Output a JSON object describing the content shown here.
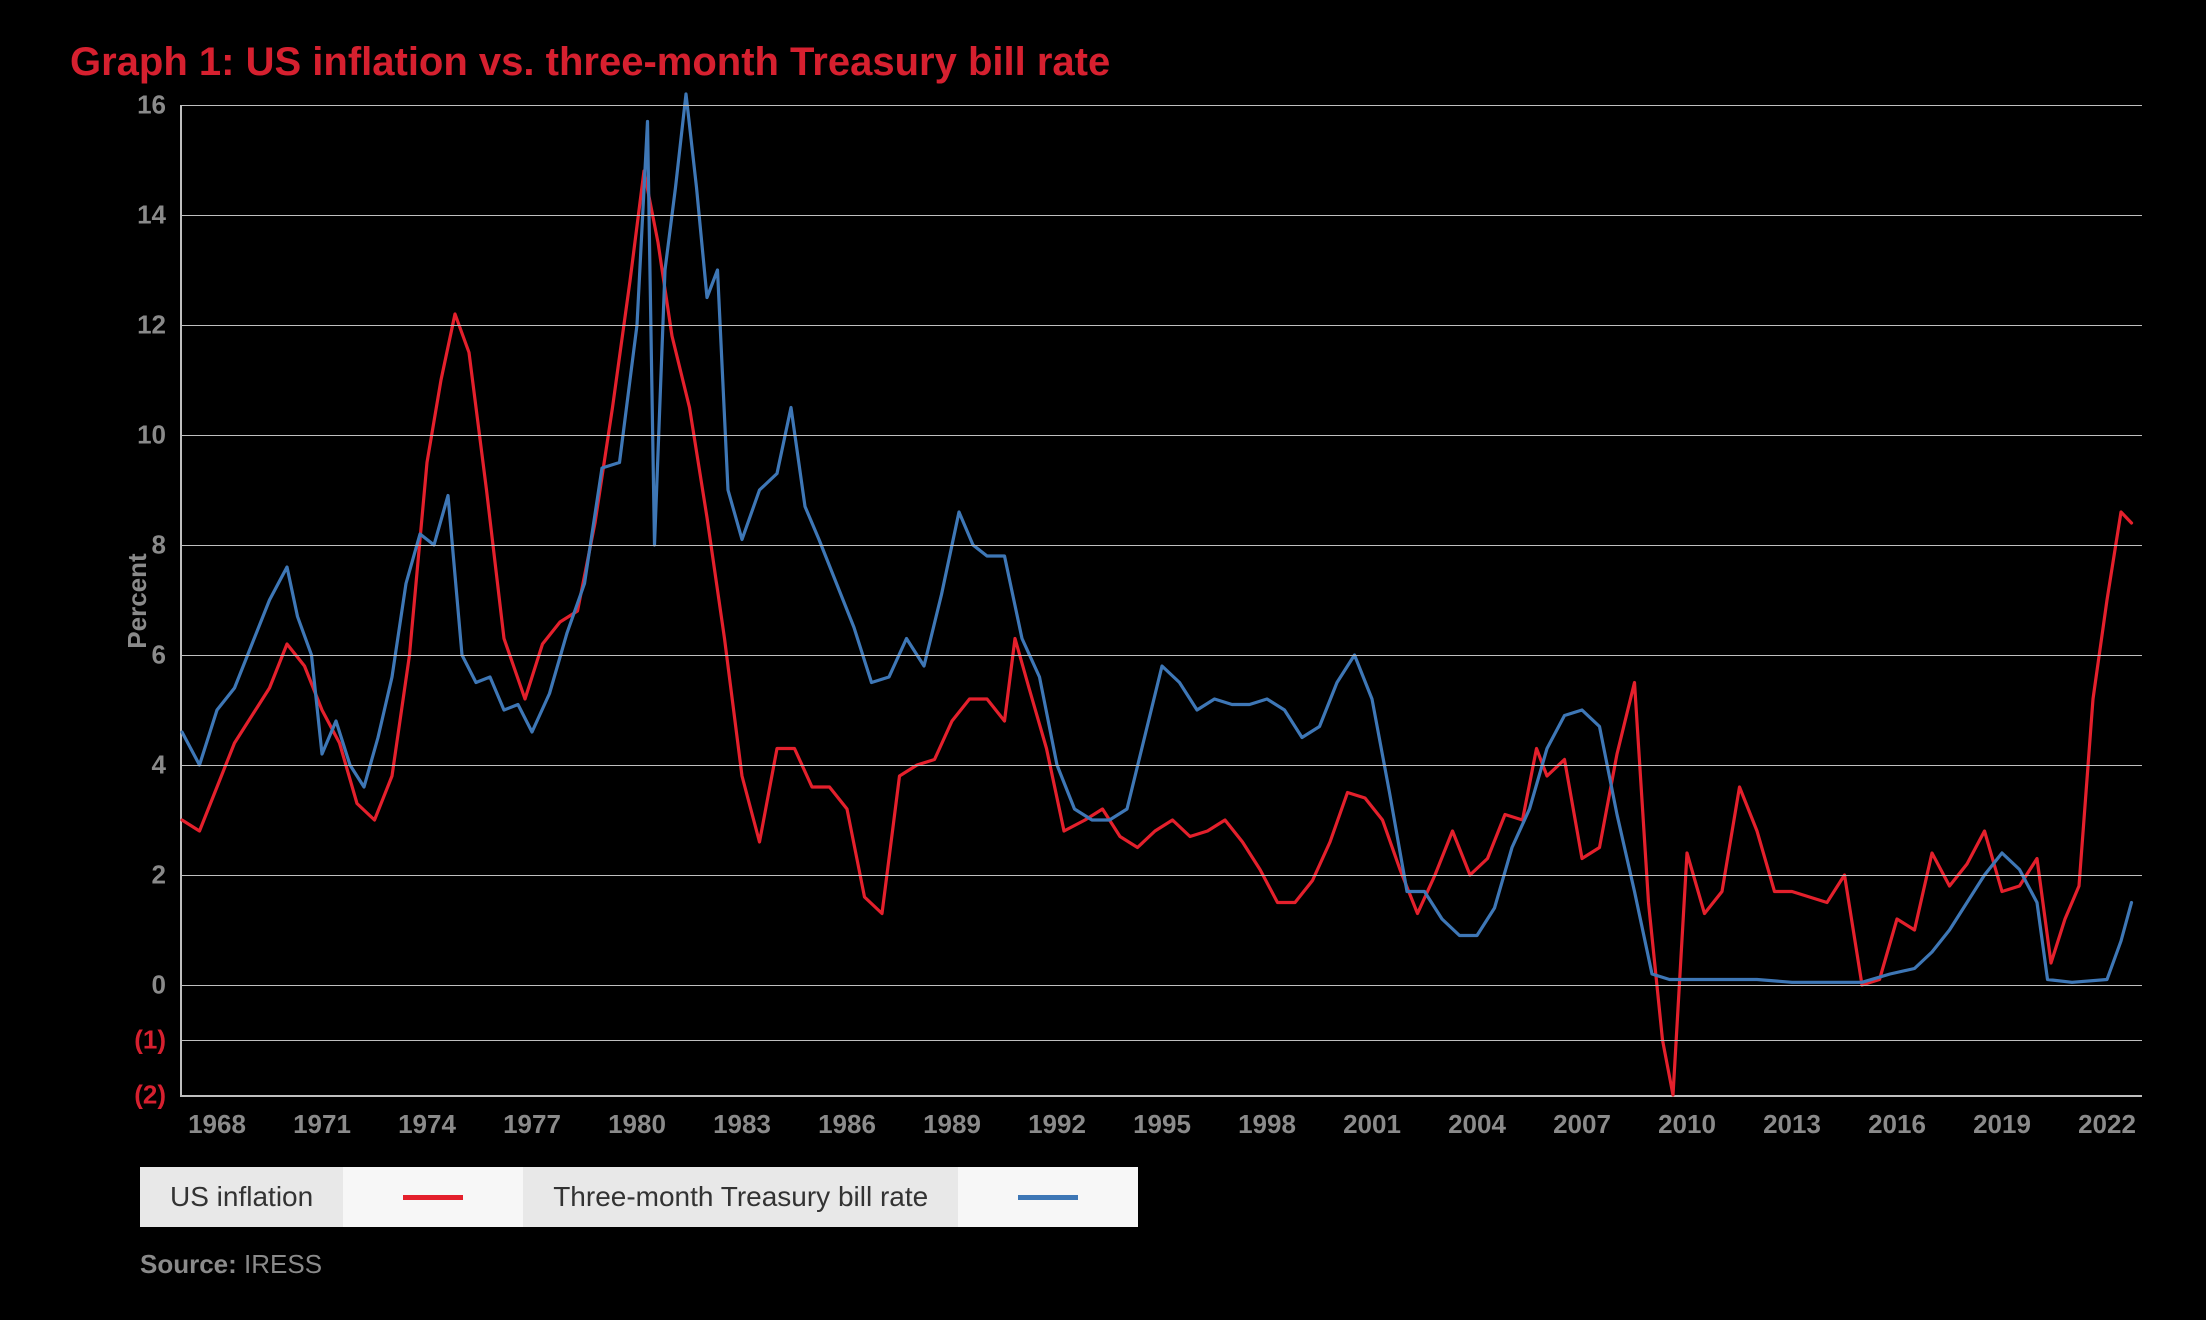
{
  "title": "Graph 1: US inflation vs. three-month Treasury bill rate",
  "y_axis_label": "Percent",
  "source_label": "Source:",
  "source_value": "IRESS",
  "legend": {
    "series1_label": "US inflation",
    "series2_label": "Three-month Treasury bill rate"
  },
  "chart": {
    "type": "line",
    "background_color": "#000000",
    "grid_color": "#bfbfbf",
    "axis_color": "#bfbfbf",
    "tick_label_color": "#8a8a8a",
    "tick_label_color_negative": "#d6202f",
    "title_color": "#d6202f",
    "title_fontsize": 40,
    "tick_fontsize": 26,
    "line_width": 3.2,
    "ylim": [
      -2,
      16
    ],
    "y_ticks": [
      -2,
      -1,
      0,
      2,
      4,
      6,
      8,
      10,
      12,
      14,
      16
    ],
    "y_tick_labels": [
      "(2)",
      "(1)",
      "0",
      "2",
      "4",
      "6",
      "8",
      "10",
      "12",
      "14",
      "16"
    ],
    "x_range": [
      1967,
      2023
    ],
    "x_ticks": [
      1968,
      1971,
      1974,
      1977,
      1980,
      1983,
      1986,
      1989,
      1992,
      1995,
      1998,
      2001,
      2004,
      2007,
      2010,
      2013,
      2016,
      2019,
      2022
    ],
    "series": [
      {
        "name": "US inflation",
        "color": "#e4202c",
        "data": [
          [
            1967.0,
            3.0
          ],
          [
            1967.5,
            2.8
          ],
          [
            1968.0,
            3.6
          ],
          [
            1968.5,
            4.4
          ],
          [
            1969.0,
            4.9
          ],
          [
            1969.5,
            5.4
          ],
          [
            1970.0,
            6.2
          ],
          [
            1970.5,
            5.8
          ],
          [
            1971.0,
            5.0
          ],
          [
            1971.5,
            4.4
          ],
          [
            1972.0,
            3.3
          ],
          [
            1972.5,
            3.0
          ],
          [
            1973.0,
            3.8
          ],
          [
            1973.5,
            6.0
          ],
          [
            1974.0,
            9.5
          ],
          [
            1974.4,
            11.0
          ],
          [
            1974.8,
            12.2
          ],
          [
            1975.2,
            11.5
          ],
          [
            1975.7,
            9.0
          ],
          [
            1976.2,
            6.3
          ],
          [
            1976.8,
            5.2
          ],
          [
            1977.3,
            6.2
          ],
          [
            1977.8,
            6.6
          ],
          [
            1978.3,
            6.8
          ],
          [
            1978.8,
            8.4
          ],
          [
            1979.3,
            10.5
          ],
          [
            1979.8,
            12.8
          ],
          [
            1980.2,
            14.8
          ],
          [
            1980.6,
            13.5
          ],
          [
            1981.0,
            11.8
          ],
          [
            1981.5,
            10.5
          ],
          [
            1982.0,
            8.5
          ],
          [
            1982.5,
            6.3
          ],
          [
            1983.0,
            3.8
          ],
          [
            1983.5,
            2.6
          ],
          [
            1984.0,
            4.3
          ],
          [
            1984.5,
            4.3
          ],
          [
            1985.0,
            3.6
          ],
          [
            1985.5,
            3.6
          ],
          [
            1986.0,
            3.2
          ],
          [
            1986.5,
            1.6
          ],
          [
            1987.0,
            1.3
          ],
          [
            1987.5,
            3.8
          ],
          [
            1988.0,
            4.0
          ],
          [
            1988.5,
            4.1
          ],
          [
            1989.0,
            4.8
          ],
          [
            1989.5,
            5.2
          ],
          [
            1990.0,
            5.2
          ],
          [
            1990.5,
            4.8
          ],
          [
            1990.8,
            6.3
          ],
          [
            1991.2,
            5.4
          ],
          [
            1991.7,
            4.3
          ],
          [
            1992.2,
            2.8
          ],
          [
            1992.8,
            3.0
          ],
          [
            1993.3,
            3.2
          ],
          [
            1993.8,
            2.7
          ],
          [
            1994.3,
            2.5
          ],
          [
            1994.8,
            2.8
          ],
          [
            1995.3,
            3.0
          ],
          [
            1995.8,
            2.7
          ],
          [
            1996.3,
            2.8
          ],
          [
            1996.8,
            3.0
          ],
          [
            1997.3,
            2.6
          ],
          [
            1997.8,
            2.1
          ],
          [
            1998.3,
            1.5
          ],
          [
            1998.8,
            1.5
          ],
          [
            1999.3,
            1.9
          ],
          [
            1999.8,
            2.6
          ],
          [
            2000.3,
            3.5
          ],
          [
            2000.8,
            3.4
          ],
          [
            2001.3,
            3.0
          ],
          [
            2001.8,
            2.1
          ],
          [
            2002.3,
            1.3
          ],
          [
            2002.8,
            2.0
          ],
          [
            2003.3,
            2.8
          ],
          [
            2003.8,
            2.0
          ],
          [
            2004.3,
            2.3
          ],
          [
            2004.8,
            3.1
          ],
          [
            2005.3,
            3.0
          ],
          [
            2005.7,
            4.3
          ],
          [
            2006.0,
            3.8
          ],
          [
            2006.5,
            4.1
          ],
          [
            2007.0,
            2.3
          ],
          [
            2007.5,
            2.5
          ],
          [
            2008.0,
            4.2
          ],
          [
            2008.5,
            5.5
          ],
          [
            2008.9,
            1.5
          ],
          [
            2009.3,
            -1.0
          ],
          [
            2009.6,
            -2.0
          ],
          [
            2010.0,
            2.4
          ],
          [
            2010.5,
            1.3
          ],
          [
            2011.0,
            1.7
          ],
          [
            2011.5,
            3.6
          ],
          [
            2012.0,
            2.8
          ],
          [
            2012.5,
            1.7
          ],
          [
            2013.0,
            1.7
          ],
          [
            2013.5,
            1.6
          ],
          [
            2014.0,
            1.5
          ],
          [
            2014.5,
            2.0
          ],
          [
            2015.0,
            0.0
          ],
          [
            2015.5,
            0.1
          ],
          [
            2016.0,
            1.2
          ],
          [
            2016.5,
            1.0
          ],
          [
            2017.0,
            2.4
          ],
          [
            2017.5,
            1.8
          ],
          [
            2018.0,
            2.2
          ],
          [
            2018.5,
            2.8
          ],
          [
            2019.0,
            1.7
          ],
          [
            2019.5,
            1.8
          ],
          [
            2020.0,
            2.3
          ],
          [
            2020.4,
            0.4
          ],
          [
            2020.8,
            1.2
          ],
          [
            2021.2,
            1.8
          ],
          [
            2021.6,
            5.2
          ],
          [
            2022.0,
            7.0
          ],
          [
            2022.4,
            8.6
          ],
          [
            2022.7,
            8.4
          ]
        ]
      },
      {
        "name": "Three-month Treasury bill rate",
        "color": "#3e77b6",
        "data": [
          [
            1967.0,
            4.6
          ],
          [
            1967.5,
            4.0
          ],
          [
            1968.0,
            5.0
          ],
          [
            1968.5,
            5.4
          ],
          [
            1969.0,
            6.2
          ],
          [
            1969.5,
            7.0
          ],
          [
            1970.0,
            7.6
          ],
          [
            1970.3,
            6.7
          ],
          [
            1970.7,
            6.0
          ],
          [
            1971.0,
            4.2
          ],
          [
            1971.4,
            4.8
          ],
          [
            1971.8,
            4.0
          ],
          [
            1972.2,
            3.6
          ],
          [
            1972.6,
            4.5
          ],
          [
            1973.0,
            5.6
          ],
          [
            1973.4,
            7.3
          ],
          [
            1973.8,
            8.2
          ],
          [
            1974.2,
            8.0
          ],
          [
            1974.6,
            8.9
          ],
          [
            1975.0,
            6.0
          ],
          [
            1975.4,
            5.5
          ],
          [
            1975.8,
            5.6
          ],
          [
            1976.2,
            5.0
          ],
          [
            1976.6,
            5.1
          ],
          [
            1977.0,
            4.6
          ],
          [
            1977.5,
            5.3
          ],
          [
            1978.0,
            6.4
          ],
          [
            1978.5,
            7.3
          ],
          [
            1979.0,
            9.4
          ],
          [
            1979.5,
            9.5
          ],
          [
            1980.0,
            12.0
          ],
          [
            1980.3,
            15.7
          ],
          [
            1980.5,
            8.0
          ],
          [
            1980.8,
            13.0
          ],
          [
            1981.1,
            14.5
          ],
          [
            1981.4,
            16.2
          ],
          [
            1981.7,
            14.5
          ],
          [
            1982.0,
            12.5
          ],
          [
            1982.3,
            13.0
          ],
          [
            1982.6,
            9.0
          ],
          [
            1983.0,
            8.1
          ],
          [
            1983.5,
            9.0
          ],
          [
            1984.0,
            9.3
          ],
          [
            1984.4,
            10.5
          ],
          [
            1984.8,
            8.7
          ],
          [
            1985.2,
            8.1
          ],
          [
            1985.7,
            7.3
          ],
          [
            1986.2,
            6.5
          ],
          [
            1986.7,
            5.5
          ],
          [
            1987.2,
            5.6
          ],
          [
            1987.7,
            6.3
          ],
          [
            1988.2,
            5.8
          ],
          [
            1988.7,
            7.1
          ],
          [
            1989.2,
            8.6
          ],
          [
            1989.6,
            8.0
          ],
          [
            1990.0,
            7.8
          ],
          [
            1990.5,
            7.8
          ],
          [
            1991.0,
            6.3
          ],
          [
            1991.5,
            5.6
          ],
          [
            1992.0,
            4.0
          ],
          [
            1992.5,
            3.2
          ],
          [
            1993.0,
            3.0
          ],
          [
            1993.5,
            3.0
          ],
          [
            1994.0,
            3.2
          ],
          [
            1994.5,
            4.5
          ],
          [
            1995.0,
            5.8
          ],
          [
            1995.5,
            5.5
          ],
          [
            1996.0,
            5.0
          ],
          [
            1996.5,
            5.2
          ],
          [
            1997.0,
            5.1
          ],
          [
            1997.5,
            5.1
          ],
          [
            1998.0,
            5.2
          ],
          [
            1998.5,
            5.0
          ],
          [
            1999.0,
            4.5
          ],
          [
            1999.5,
            4.7
          ],
          [
            2000.0,
            5.5
          ],
          [
            2000.5,
            6.0
          ],
          [
            2001.0,
            5.2
          ],
          [
            2001.5,
            3.5
          ],
          [
            2002.0,
            1.7
          ],
          [
            2002.5,
            1.7
          ],
          [
            2003.0,
            1.2
          ],
          [
            2003.5,
            0.9
          ],
          [
            2004.0,
            0.9
          ],
          [
            2004.5,
            1.4
          ],
          [
            2005.0,
            2.5
          ],
          [
            2005.5,
            3.2
          ],
          [
            2006.0,
            4.3
          ],
          [
            2006.5,
            4.9
          ],
          [
            2007.0,
            5.0
          ],
          [
            2007.5,
            4.7
          ],
          [
            2008.0,
            3.1
          ],
          [
            2008.5,
            1.7
          ],
          [
            2009.0,
            0.2
          ],
          [
            2009.5,
            0.1
          ],
          [
            2010.0,
            0.1
          ],
          [
            2011.0,
            0.1
          ],
          [
            2012.0,
            0.1
          ],
          [
            2013.0,
            0.05
          ],
          [
            2014.0,
            0.05
          ],
          [
            2015.0,
            0.05
          ],
          [
            2015.8,
            0.2
          ],
          [
            2016.5,
            0.3
          ],
          [
            2017.0,
            0.6
          ],
          [
            2017.5,
            1.0
          ],
          [
            2018.0,
            1.5
          ],
          [
            2018.5,
            2.0
          ],
          [
            2019.0,
            2.4
          ],
          [
            2019.5,
            2.1
          ],
          [
            2020.0,
            1.5
          ],
          [
            2020.3,
            0.1
          ],
          [
            2021.0,
            0.05
          ],
          [
            2022.0,
            0.1
          ],
          [
            2022.4,
            0.8
          ],
          [
            2022.7,
            1.5
          ]
        ]
      }
    ]
  }
}
